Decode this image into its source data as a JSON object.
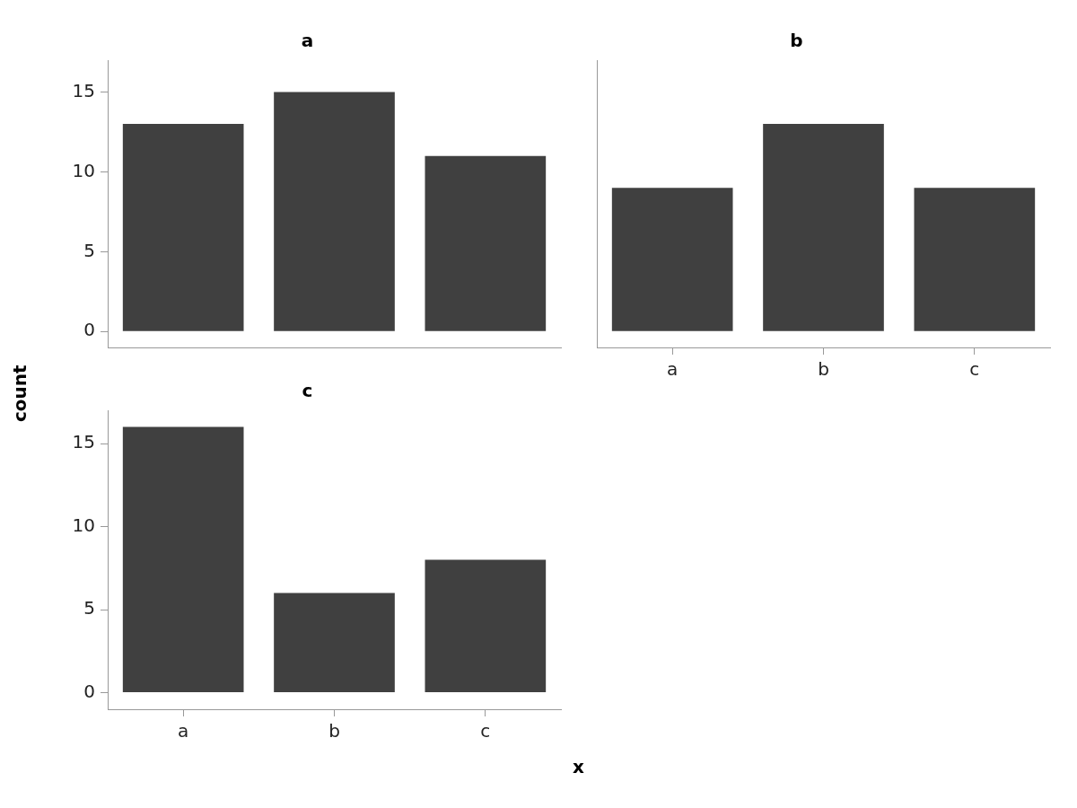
{
  "chart_data": [
    {
      "type": "bar",
      "title": "a",
      "ylabel": "count",
      "categories": [
        null,
        null,
        null
      ],
      "values": [
        13,
        15,
        11
      ],
      "color": "#404040",
      "ylim": [
        -1,
        17
      ],
      "yticks": [
        0,
        5,
        10,
        15
      ],
      "grid": false,
      "legend": false,
      "tick_labels": "y"
    },
    {
      "type": "bar",
      "title": "b",
      "categories": [
        "a",
        "b",
        "c"
      ],
      "values": [
        9,
        13,
        9
      ],
      "color": "#404040",
      "ylim": [
        -1,
        17
      ],
      "yticks": [
        0,
        5,
        10,
        15
      ],
      "grid": false,
      "legend": false,
      "tick_labels": "x"
    },
    {
      "type": "bar",
      "title": "c",
      "xlabel": "x",
      "categories": [
        "a",
        "b",
        "c"
      ],
      "values": [
        16,
        6,
        8
      ],
      "color": "#404040",
      "ylim": [
        -1,
        17
      ],
      "yticks": [
        0,
        5,
        10,
        15
      ],
      "grid": false,
      "legend": false
    }
  ]
}
